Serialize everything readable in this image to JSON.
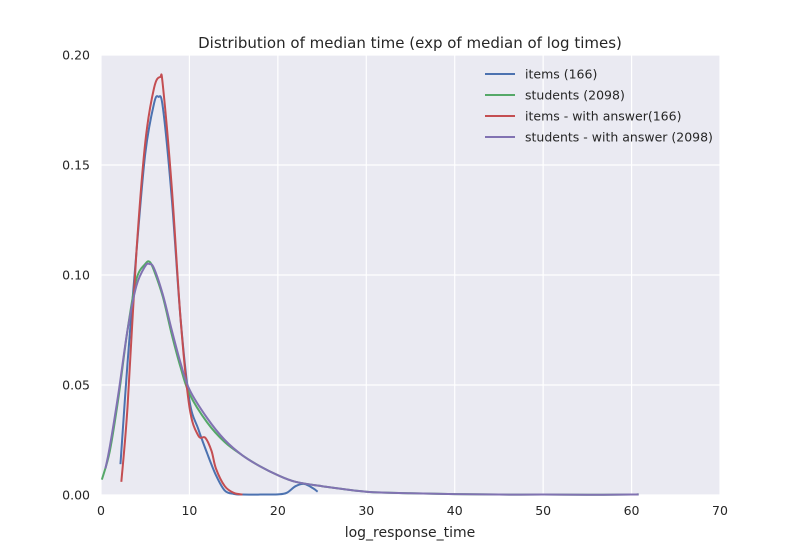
{
  "chart_data": {
    "type": "line",
    "title": "Distribution of median time (exp of median of log times)",
    "xlabel": "log_response_time",
    "ylabel": "",
    "xlim": [
      0,
      70
    ],
    "ylim": [
      0,
      0.2
    ],
    "xticks": [
      "0",
      "10",
      "20",
      "30",
      "40",
      "50",
      "60",
      "70"
    ],
    "yticks": [
      "0.00",
      "0.05",
      "0.10",
      "0.15",
      "0.20"
    ],
    "grid": true,
    "legend_position": "top-right",
    "series": [
      {
        "name": "items (166)",
        "color": "#4c72b0",
        "x": [
          2.2,
          3,
          4,
          5,
          6,
          6.5,
          7,
          8,
          9,
          10,
          11,
          12,
          13,
          14,
          15,
          16,
          18,
          20,
          21,
          22,
          23,
          24,
          24.5
        ],
        "y": [
          0.014,
          0.06,
          0.11,
          0.155,
          0.178,
          0.181,
          0.176,
          0.135,
          0.08,
          0.043,
          0.03,
          0.019,
          0.009,
          0.002,
          0.0005,
          0.0002,
          0.0002,
          0.0003,
          0.001,
          0.004,
          0.005,
          0.003,
          0.0015
        ]
      },
      {
        "name": "students (2098)",
        "color": "#55a868",
        "x": [
          0.1,
          1,
          2,
          3,
          4,
          5,
          5.5,
          6,
          7,
          8,
          9,
          10,
          12,
          14,
          16,
          18,
          20,
          22,
          25,
          30,
          35,
          40,
          45,
          50,
          55,
          60,
          60.8
        ],
        "y": [
          0.007,
          0.02,
          0.045,
          0.075,
          0.098,
          0.105,
          0.106,
          0.102,
          0.09,
          0.073,
          0.058,
          0.046,
          0.033,
          0.024,
          0.018,
          0.013,
          0.009,
          0.006,
          0.004,
          0.0015,
          0.0008,
          0.0004,
          0.0002,
          0.0002,
          0.0001,
          0.0002,
          0.0003
        ]
      },
      {
        "name": "items - with answer(166)",
        "color": "#c44e52",
        "x": [
          2.3,
          3,
          4,
          5,
          6,
          6.7,
          7,
          8,
          9,
          10,
          11,
          11.8,
          12.5,
          13,
          14,
          15,
          16
        ],
        "y": [
          0.006,
          0.04,
          0.11,
          0.16,
          0.185,
          0.19,
          0.186,
          0.14,
          0.08,
          0.04,
          0.027,
          0.026,
          0.02,
          0.012,
          0.004,
          0.001,
          0.0002
        ]
      },
      {
        "name": "students - with answer (2098)",
        "color": "#8172b2",
        "x": [
          0.5,
          1,
          2,
          3,
          4,
          5,
          5.5,
          6,
          7,
          8,
          9,
          10,
          12,
          14,
          16,
          18,
          20,
          22,
          25,
          30,
          35,
          40,
          45,
          50,
          55,
          60,
          60.8
        ],
        "y": [
          0.012,
          0.022,
          0.047,
          0.075,
          0.095,
          0.104,
          0.105,
          0.103,
          0.091,
          0.075,
          0.06,
          0.048,
          0.035,
          0.025,
          0.018,
          0.013,
          0.009,
          0.006,
          0.004,
          0.0015,
          0.0008,
          0.0004,
          0.0002,
          0.0002,
          0.0001,
          0.0002,
          0.0003
        ]
      }
    ]
  }
}
